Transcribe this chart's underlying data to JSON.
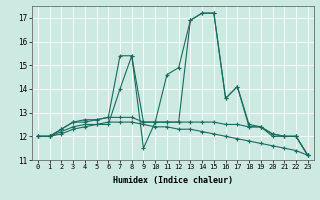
{
  "title": "",
  "xlabel": "Humidex (Indice chaleur)",
  "xlim": [
    -0.5,
    23.5
  ],
  "ylim": [
    11,
    17.5
  ],
  "yticks": [
    11,
    12,
    13,
    14,
    15,
    16,
    17
  ],
  "xticks": [
    0,
    1,
    2,
    3,
    4,
    5,
    6,
    7,
    8,
    9,
    10,
    11,
    12,
    13,
    14,
    15,
    16,
    17,
    18,
    19,
    20,
    21,
    22,
    23
  ],
  "bg_color": "#cce9e2",
  "line_color": "#1a6b5e",
  "grid_color": "#ffffff",
  "series": [
    [
      12.0,
      12.0,
      12.3,
      12.6,
      12.6,
      12.7,
      12.8,
      15.4,
      15.4,
      11.5,
      12.6,
      12.6,
      12.6,
      16.9,
      17.2,
      17.2,
      13.6,
      14.1,
      12.4,
      12.4,
      12.0,
      12.0,
      12.0,
      11.2
    ],
    [
      12.0,
      12.0,
      12.3,
      12.6,
      12.7,
      12.7,
      12.8,
      12.8,
      12.8,
      12.6,
      12.6,
      12.6,
      12.6,
      12.6,
      12.6,
      12.6,
      12.5,
      12.5,
      12.4,
      12.4,
      12.1,
      12.0,
      12.0,
      11.2
    ],
    [
      12.0,
      12.0,
      12.2,
      12.4,
      12.5,
      12.5,
      12.6,
      12.6,
      12.6,
      12.5,
      12.4,
      12.4,
      12.3,
      12.3,
      12.2,
      12.1,
      12.0,
      11.9,
      11.8,
      11.7,
      11.6,
      11.5,
      11.4,
      11.2
    ],
    [
      12.0,
      12.0,
      12.1,
      12.3,
      12.4,
      12.5,
      12.5,
      14.0,
      15.4,
      12.6,
      12.6,
      14.6,
      14.9,
      16.9,
      17.2,
      17.2,
      13.6,
      14.1,
      12.5,
      12.4,
      12.1,
      12.0,
      12.0,
      11.2
    ]
  ]
}
